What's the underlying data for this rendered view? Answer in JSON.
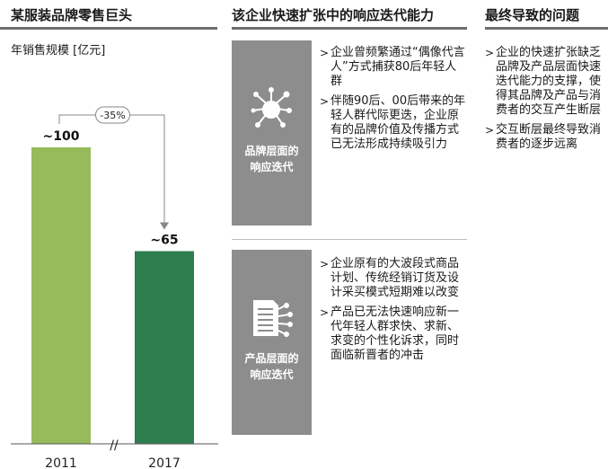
{
  "headers": {
    "col1": "某服装品牌零售巨头",
    "col2": "该企业快速扩张中的响应迭代能力",
    "col3": "最终导致的问题"
  },
  "chart_data": {
    "type": "bar",
    "ylabel": "年销售规模 [亿元]",
    "categories": [
      "2011",
      "2017"
    ],
    "values": [
      100,
      65
    ],
    "value_labels": [
      "~100",
      "~65"
    ],
    "change_label": "-35%",
    "axis_break": "//",
    "colors": [
      "#95bb5a",
      "#2e7d4f"
    ]
  },
  "brand_panel": {
    "label_line1": "品牌层面的",
    "label_line2": "响应迭代",
    "icon": "network-hub-icon",
    "bullets": [
      "企业曾频繁通过“偶像代言人”方式捕获80后年轻人群",
      "伴随90后、00后带来的年轻人群代际更迭，企业原有的品牌价值及传播方式已无法形成持续吸引力"
    ]
  },
  "product_panel": {
    "label_line1": "产品层面的",
    "label_line2": "响应迭代",
    "icon": "process-flow-icon",
    "bullets": [
      "企业原有的大波段式商品计划、传统经销订货及设计采买模式短期难以改变",
      "产品已无法快速响应新一代年轻人群求快、求新、求变的个性化诉求，同时面临新晋者的冲击"
    ]
  },
  "issues": [
    "企业的快速扩张缺乏品牌及产品层面快速迭代能力的支撑，使得其品牌及产品与消费者的交互产生断层",
    "交互断层最终导致消费者的逐步远离"
  ]
}
